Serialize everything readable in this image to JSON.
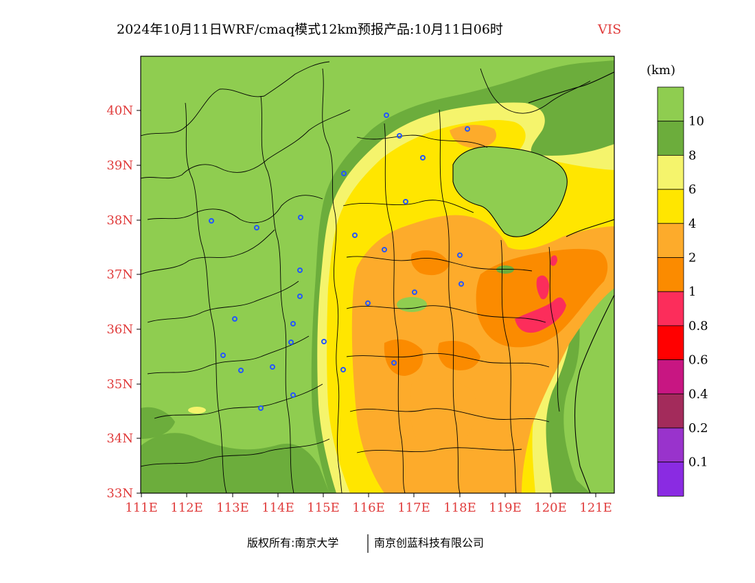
{
  "title": {
    "main": "2024年10月11日WRF/cmaq模式12km预报产品:10月11日06时",
    "variable": "VIS"
  },
  "colors": {
    "axis_label": "#e03c3c",
    "variable_label": "#e03c3c"
  },
  "axes": {
    "lat_labels": [
      "40N",
      "39N",
      "38N",
      "37N",
      "36N",
      "35N",
      "34N",
      "33N"
    ],
    "lon_labels": [
      "111E",
      "112E",
      "113E",
      "114E",
      "115E",
      "116E",
      "117E",
      "118E",
      "119E",
      "120E",
      "121E"
    ]
  },
  "legend": {
    "unit": "(km)",
    "bins": [
      {
        "color": "#8fcd50",
        "label": "10"
      },
      {
        "color": "#6cad3c",
        "label": "8"
      },
      {
        "color": "#f5f46c",
        "label": "6"
      },
      {
        "color": "#ffe600",
        "label": "4"
      },
      {
        "color": "#fdab2b",
        "label": "2"
      },
      {
        "color": "#fb8b00",
        "label": "1"
      },
      {
        "color": "#fc2d5b",
        "label": "0.8"
      },
      {
        "color": "#ff0000",
        "label": "0.6"
      },
      {
        "color": "#c81682",
        "label": "0.4"
      },
      {
        "color": "#a32b5b",
        "label": "0.2"
      },
      {
        "color": "#9933cc",
        "label": "0.1"
      },
      {
        "color": "#8a2be2",
        "label": ""
      }
    ]
  },
  "map": {
    "visibility_classes": [
      "10",
      "8",
      "6",
      "4",
      "2",
      "1",
      "0.8"
    ],
    "city_marker_icon": "circle-marker-icon",
    "city_marker_color": "#2255ff"
  },
  "footer": {
    "left": "版权所有:南京大学",
    "right": "南京创蓝科技有限公司"
  }
}
